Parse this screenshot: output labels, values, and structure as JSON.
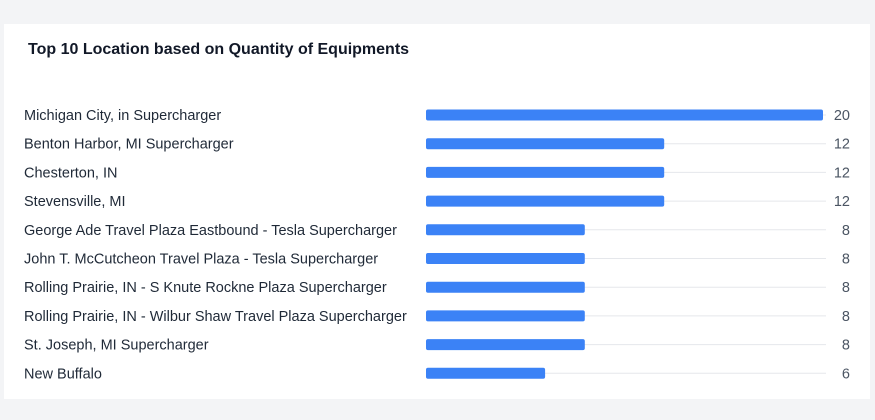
{
  "colors": {
    "bar": "#3b82f6",
    "track": "#e5e7eb",
    "background": "#f3f4f6",
    "card": "#ffffff"
  },
  "chart_data": {
    "type": "bar",
    "orientation": "horizontal",
    "title": "Top 10 Location based on Quantity of Equipments",
    "categories": [
      "Michigan City, in Supercharger",
      "Benton Harbor, MI Supercharger",
      "Chesterton, IN",
      "Stevensville, MI",
      "George Ade Travel Plaza Eastbound - Tesla Supercharger",
      "John T. McCutcheon Travel Plaza - Tesla Supercharger",
      "Rolling Prairie, IN - S Knute Rockne Plaza Supercharger",
      "Rolling Prairie, IN - Wilbur Shaw Travel Plaza Supercharger",
      "St. Joseph, MI Supercharger",
      "New Buffalo"
    ],
    "values": [
      20,
      12,
      12,
      12,
      8,
      8,
      8,
      8,
      8,
      6
    ],
    "value_labels": [
      "20",
      "12",
      "12",
      "12",
      "8",
      "8",
      "8",
      "8",
      "8",
      "6"
    ],
    "xlim": [
      0,
      20
    ],
    "grid": false,
    "legend": "none"
  }
}
